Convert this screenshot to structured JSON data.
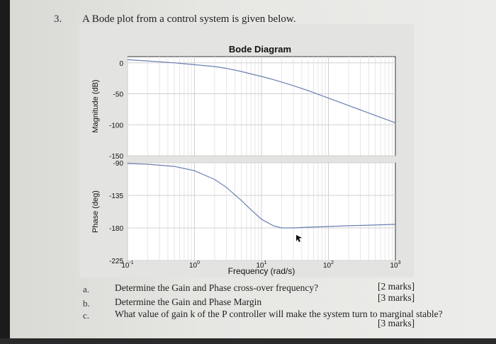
{
  "question": {
    "number": "3.",
    "text": "A Bode plot from a control system is given below."
  },
  "chart_data": {
    "type": "line",
    "title": "Bode Diagram",
    "xlabel": "Frequency (rad/s)",
    "xscale": "log",
    "xlim": [
      0.1,
      1000
    ],
    "x_tick_labels": [
      "10^-1",
      "10^0",
      "10^1",
      "10^2",
      "10^3"
    ],
    "grid": true,
    "panels": [
      {
        "name": "magnitude",
        "ylabel": "Magnitude (dB)",
        "ylim": [
          -150,
          10
        ],
        "y_tick_labels": [
          "0",
          "-50",
          "-100",
          "-150"
        ],
        "series": [
          {
            "x": [
              0.1,
              0.2,
              0.5,
              1,
              2,
              3,
              5,
              7,
              10,
              15,
              20,
              30,
              50,
              100,
              200,
              500,
              1000
            ],
            "y": [
              5,
              3,
              0,
              -3,
              -6,
              -9,
              -14,
              -18,
              -22,
              -27,
              -31,
              -37,
              -45,
              -57,
              -69,
              -85,
              -97
            ]
          }
        ]
      },
      {
        "name": "phase",
        "ylabel": "Phase (deg)",
        "ylim": [
          -225,
          -90
        ],
        "y_tick_labels": [
          "-90",
          "-135",
          "-180",
          "-225"
        ],
        "series": [
          {
            "x": [
              0.1,
              0.2,
              0.5,
              1,
              2,
              3,
              5,
              7,
              10,
              15,
              20,
              30,
              50,
              100,
              200,
              500,
              1000
            ],
            "y": [
              -91,
              -92,
              -95,
              -101,
              -113,
              -124,
              -142,
              -155,
              -168,
              -177,
              -180,
              -180,
              -179,
              -178,
              -177,
              -176,
              -175
            ]
          }
        ]
      }
    ]
  },
  "subquestions": [
    {
      "letter": "a.",
      "text": "Determine the Gain and Phase cross-over frequency?",
      "marks": "[2 marks]"
    },
    {
      "letter": "b.",
      "text": "Determine the Gain and Phase Margin",
      "marks": "[3 marks]"
    },
    {
      "letter": "c.",
      "text": "What value of gain k of the P controller will make the system turn to marginal stable?",
      "marks": "[3 marks]"
    }
  ]
}
